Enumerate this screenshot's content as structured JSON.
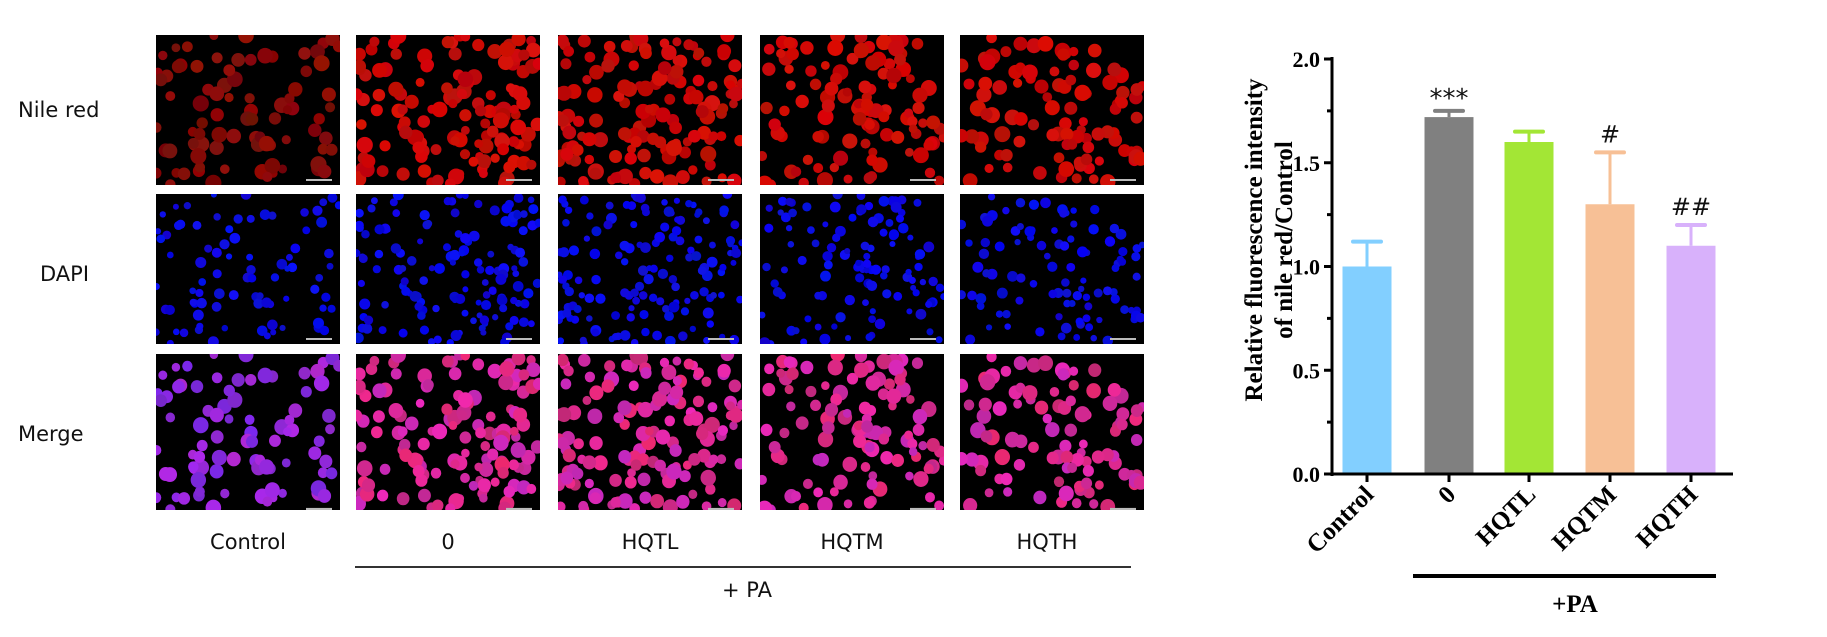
{
  "micrograph": {
    "row_labels": [
      "Nile red",
      "DAPI",
      "Merge"
    ],
    "column_labels": [
      "Control",
      "0",
      "HQTL",
      "HQTM",
      "HQTH"
    ],
    "group_label": "+ PA"
  },
  "chart_data": {
    "type": "bar",
    "categories": [
      "Control",
      "0",
      "HQTL",
      "HQTM",
      "HQTH"
    ],
    "values": [
      1.0,
      1.72,
      1.6,
      1.3,
      1.1
    ],
    "error_upper": [
      0.12,
      0.03,
      0.05,
      0.25,
      0.1
    ],
    "annotations": [
      "",
      "***",
      "",
      "#",
      "##"
    ],
    "colors": [
      "#82cfff",
      "#808080",
      "#a3e635",
      "#f7c096",
      "#d8b1fb"
    ],
    "ylabel_line1": "Relative fluorescence intensity",
    "ylabel_line2": "of nile red/Control",
    "ylim": [
      0,
      2.0
    ],
    "yticks": [
      "0.0",
      "0.5",
      "1.0",
      "1.5",
      "2.0"
    ],
    "group_label": "+PA",
    "grid": false
  }
}
